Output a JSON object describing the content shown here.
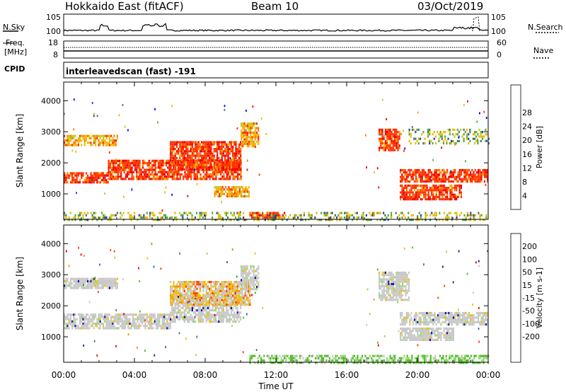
{
  "header": {
    "title": "Hokkaido East (fitACF)",
    "beam": "Beam 10",
    "date": "03/Oct/2019"
  },
  "noise_panel": {
    "left_label": "N.Sky",
    "right_label": "N.Search",
    "left_ticks": [
      "10^5",
      "10^0"
    ],
    "right_ticks": [
      "10^5",
      "10^0"
    ]
  },
  "freq_panel": {
    "left_label": "Freq.",
    "left_unit": "[MHz]",
    "right_label": "Nave",
    "left_ticks": [
      "18",
      "8"
    ],
    "right_ticks": [
      "60",
      "0"
    ]
  },
  "cpid_panel": {
    "label": "CPID",
    "text": "interleavedscan (fast) -191"
  },
  "chart_data": [
    {
      "type": "heatmap",
      "quantity": "Power",
      "ylabel": "Slant Range [km]",
      "ylim": [
        180,
        4600
      ],
      "yticks": [
        1000,
        2000,
        3000,
        4000
      ],
      "xlim": [
        0,
        24
      ],
      "colorbar_label": "Power [dB]",
      "colorbar_ticks": [
        "4",
        "8",
        "12",
        "16",
        "20",
        "24",
        "28"
      ],
      "colorbar_colors": [
        "#0000ff",
        "#2b44a8",
        "#3e7f63",
        "#5fa838",
        "#c8c81a",
        "#ffb000",
        "#ff7800",
        "#ff3300",
        "#ee0000"
      ],
      "regions": [
        {
          "x0": 0.0,
          "x1": 2.5,
          "y0": 1350,
          "y1": 1700,
          "level": "high"
        },
        {
          "x0": 2.5,
          "x1": 10.0,
          "y0": 1500,
          "y1": 2100,
          "level": "high"
        },
        {
          "x0": 6.0,
          "x1": 10.0,
          "y0": 1800,
          "y1": 2700,
          "level": "high"
        },
        {
          "x0": 10.0,
          "x1": 11.0,
          "y0": 2500,
          "y1": 3300,
          "level": "mid"
        },
        {
          "x0": 0.0,
          "x1": 3.0,
          "y0": 2550,
          "y1": 2900,
          "level": "mid"
        },
        {
          "x0": 8.5,
          "x1": 10.5,
          "y0": 900,
          "y1": 1250,
          "level": "mid"
        },
        {
          "x0": 10.5,
          "x1": 12.5,
          "y0": 230,
          "y1": 420,
          "level": "high"
        },
        {
          "x0": 17.8,
          "x1": 19.0,
          "y0": 2400,
          "y1": 3100,
          "level": "high"
        },
        {
          "x0": 19.0,
          "x1": 24.0,
          "y0": 1400,
          "y1": 1800,
          "level": "high"
        },
        {
          "x0": 19.0,
          "x1": 22.5,
          "y0": 800,
          "y1": 1300,
          "level": "high"
        },
        {
          "x0": 19.5,
          "x1": 24.0,
          "y0": 2600,
          "y1": 3100,
          "level": "low"
        },
        {
          "x0": 0.0,
          "x1": 24.0,
          "y0": 200,
          "y1": 420,
          "level": "low"
        }
      ]
    },
    {
      "type": "heatmap",
      "quantity": "Velocity",
      "ylabel": "Slant Range [km]",
      "ylim": [
        180,
        4600
      ],
      "yticks": [
        1000,
        2000,
        3000,
        4000
      ],
      "xlim": [
        0,
        24
      ],
      "xticks": [
        "00:00",
        "04:00",
        "08:00",
        "12:00",
        "16:00",
        "20:00",
        "00:00"
      ],
      "xlabel": "Time UT",
      "colorbar_label": "Velocity [m s^-1]",
      "colorbar_ticks": [
        "200",
        "100",
        "50",
        "15",
        "-15",
        "-50",
        "-100",
        "-200"
      ],
      "colorbar_colors": [
        "#1a1aa0",
        "#2a6ab0",
        "#3e7f63",
        "#55b830",
        "#8ae05a",
        "#c8c8c8",
        "#f0c000",
        "#ff9000",
        "#ff4000",
        "#ee0000"
      ],
      "regions": [
        {
          "x0": 0.0,
          "x1": 6.0,
          "y0": 1250,
          "y1": 1750,
          "level": "zero"
        },
        {
          "x0": 6.0,
          "x1": 10.0,
          "y0": 1500,
          "y1": 2400,
          "level": "zero"
        },
        {
          "x0": 6.0,
          "x1": 10.5,
          "y0": 2000,
          "y1": 2800,
          "level": "neg"
        },
        {
          "x0": 10.0,
          "x1": 11.0,
          "y0": 2500,
          "y1": 3300,
          "level": "zero"
        },
        {
          "x0": 0.0,
          "x1": 3.0,
          "y0": 2550,
          "y1": 2900,
          "level": "zero"
        },
        {
          "x0": 17.8,
          "x1": 19.5,
          "y0": 2200,
          "y1": 3100,
          "level": "zero"
        },
        {
          "x0": 19.0,
          "x1": 24.0,
          "y0": 1400,
          "y1": 1800,
          "level": "zero"
        },
        {
          "x0": 19.0,
          "x1": 22.0,
          "y0": 900,
          "y1": 1300,
          "level": "zero"
        },
        {
          "x0": 10.5,
          "x1": 24.0,
          "y0": 200,
          "y1": 420,
          "level": "pos"
        }
      ]
    }
  ]
}
